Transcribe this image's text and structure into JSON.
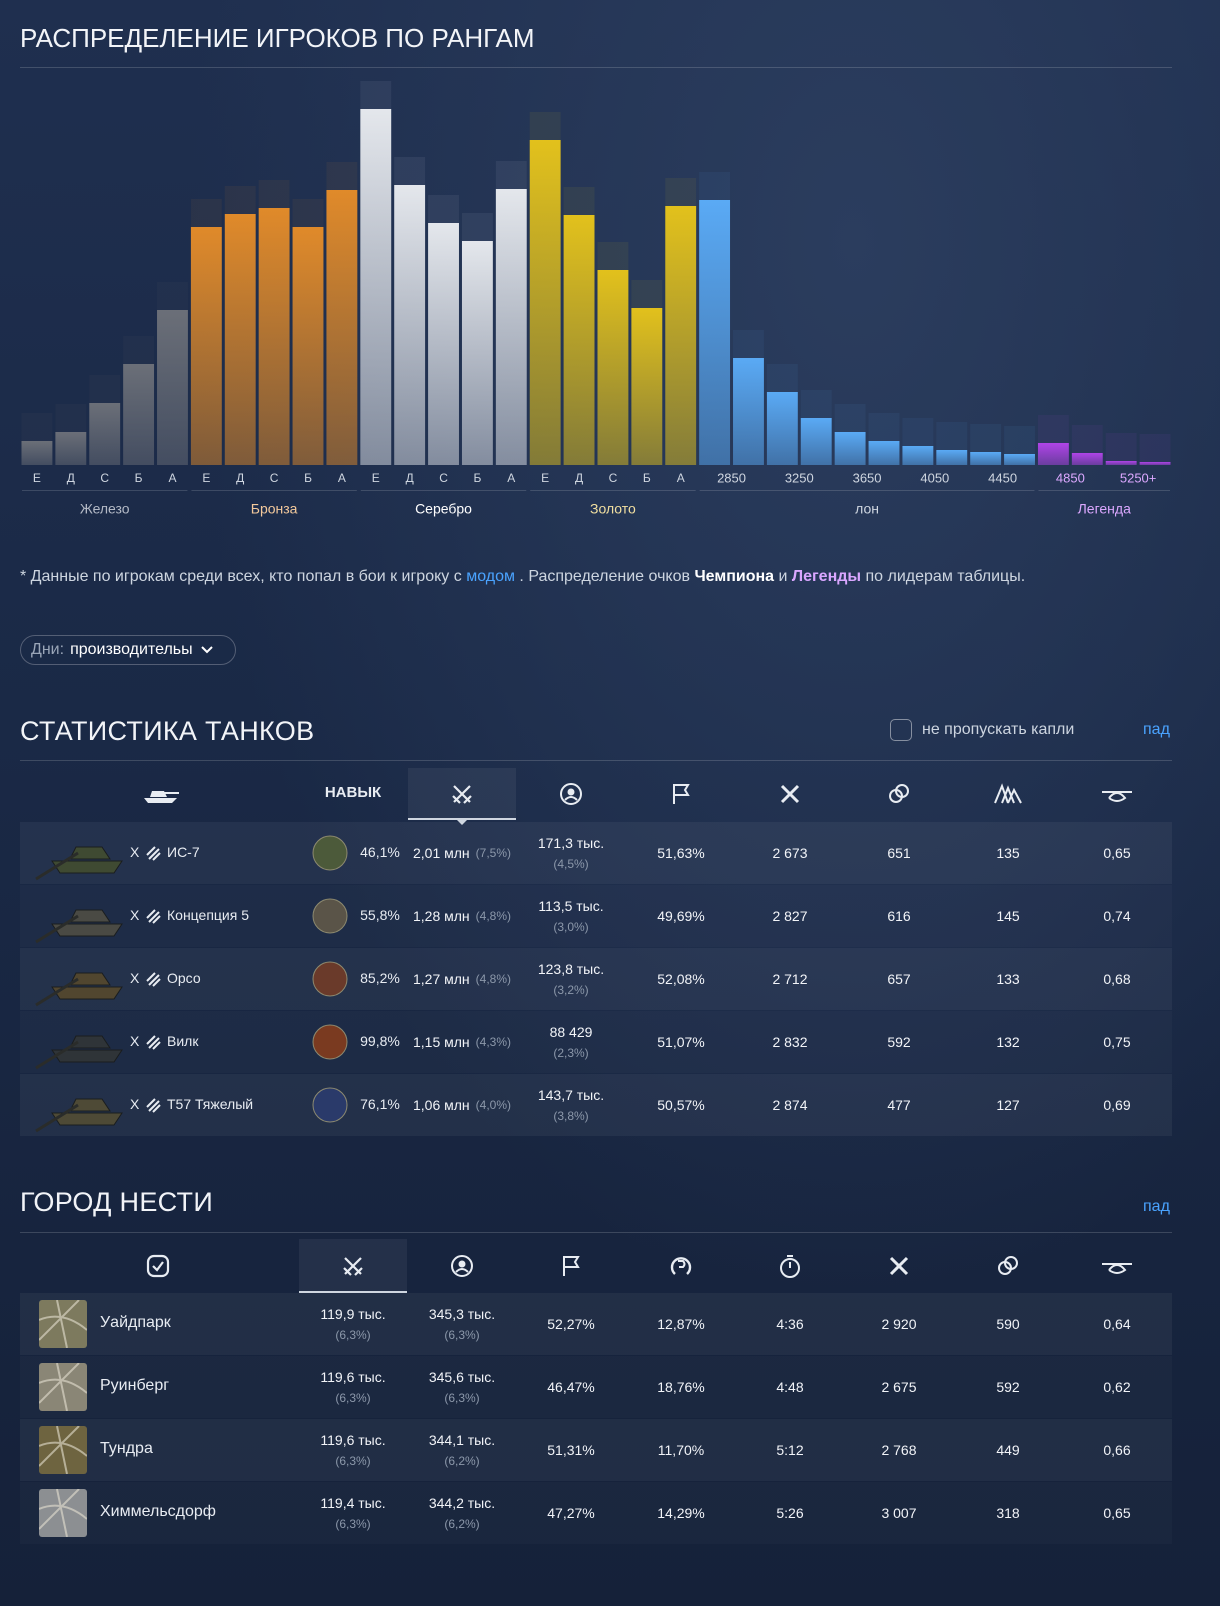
{
  "chart_data": {
    "type": "bar",
    "title": "РАСПРЕДЕЛЕНИЕ ИГРОКОВ ПО РАНГАМ",
    "series": [
      {
        "name": "Железо",
        "color": "#6b6f78",
        "categories": [
          "Е",
          "Д",
          "С",
          "Б",
          "А"
        ],
        "values": [
          24,
          33,
          62,
          101,
          155
        ]
      },
      {
        "name": "Бронза",
        "color": "#e08a2a",
        "categories": [
          "Е",
          "Д",
          "С",
          "Б",
          "А"
        ],
        "values": [
          238,
          251,
          257,
          238,
          275
        ]
      },
      {
        "name": "Серебро",
        "color": "#e4e7ec",
        "categories": [
          "Е",
          "Д",
          "С",
          "Б",
          "А"
        ],
        "values": [
          356,
          280,
          242,
          224,
          276
        ]
      },
      {
        "name": "Золото",
        "color": "#e2c11c",
        "categories": [
          "Е",
          "Д",
          "С",
          "Б",
          "А"
        ],
        "values": [
          325,
          250,
          195,
          157,
          259
        ]
      },
      {
        "name": "лон",
        "color": "#5aaaf5",
        "categories": [
          "2850",
          null,
          "3250",
          null,
          "3650",
          null,
          "4050",
          null,
          "4450",
          null
        ],
        "values": [
          265,
          107,
          73,
          47,
          33,
          24,
          19,
          15,
          13,
          11
        ]
      },
      {
        "name": "Легенда",
        "color": "#b044e8",
        "categories": [
          "4850",
          null,
          "5250+",
          null
        ],
        "values": [
          22,
          12,
          4,
          3
        ]
      }
    ]
  },
  "note": {
    "prefix": "* Данные по игрокам среди всех, кто попал в бои к игроку с",
    "link": "модом",
    "middle": ". Распределение очков",
    "champion": "Чемпиона",
    "and": "и",
    "legend": "Легенды",
    "suffix": "по лидерам таблицы."
  },
  "filter": {
    "label": "Дни:",
    "value": "производительы"
  },
  "tanks": {
    "title": "СТАТИСТИКА ТАНКОВ",
    "checkbox_label": "не пропускать капли",
    "link": "пад",
    "skill_header": "НАВЫК",
    "rows": [
      {
        "tier": "X",
        "name": "ИС-7",
        "skill": "46,1%",
        "battles": "2,01 млн",
        "battles_share": "(7,5%)",
        "players": "171,3 тыс.",
        "players_share": "(4,5%)",
        "winrate": "51,63%",
        "damage": "2 673",
        "exp": "651",
        "spots": "135",
        "ratio": "0,65"
      },
      {
        "tier": "X",
        "name": "Концепция 5",
        "skill": "55,8%",
        "battles": "1,28 млн",
        "battles_share": "(4,8%)",
        "players": "113,5 тыс.",
        "players_share": "(3,0%)",
        "winrate": "49,69%",
        "damage": "2 827",
        "exp": "616",
        "spots": "145",
        "ratio": "0,74"
      },
      {
        "tier": "X",
        "name": "Орсо",
        "skill": "85,2%",
        "battles": "1,27 млн",
        "battles_share": "(4,8%)",
        "players": "123,8 тыс.",
        "players_share": "(3,2%)",
        "winrate": "52,08%",
        "damage": "2 712",
        "exp": "657",
        "spots": "133",
        "ratio": "0,68"
      },
      {
        "tier": "X",
        "name": "Вилк",
        "skill": "99,8%",
        "battles": "1,15 млн",
        "battles_share": "(4,3%)",
        "players": "88 429",
        "players_share": "(2,3%)",
        "winrate": "51,07%",
        "damage": "2 832",
        "exp": "592",
        "spots": "132",
        "ratio": "0,75"
      },
      {
        "tier": "X",
        "name": "Т57 Тяжелый",
        "skill": "76,1%",
        "battles": "1,06 млн",
        "battles_share": "(4,0%)",
        "players": "143,7 тыс.",
        "players_share": "(3,8%)",
        "winrate": "50,57%",
        "damage": "2 874",
        "exp": "477",
        "spots": "127",
        "ratio": "0,69"
      }
    ]
  },
  "maps": {
    "title": "ГОРОД НЕСТИ",
    "link": "пад",
    "rows": [
      {
        "name": "Уайдпарк",
        "battles": "119,9 тыс.",
        "battles_share": "(6,3%)",
        "players": "345,3 тыс.",
        "players_share": "(6,3%)",
        "winrate": "52,27%",
        "survival": "12,87%",
        "time": "4:36",
        "damage": "2 920",
        "exp": "590",
        "ratio": "0,64"
      },
      {
        "name": "Руинберг",
        "battles": "119,6 тыс.",
        "battles_share": "(6,3%)",
        "players": "345,6 тыс.",
        "players_share": "(6,3%)",
        "winrate": "46,47%",
        "survival": "18,76%",
        "time": "4:48",
        "damage": "2 675",
        "exp": "592",
        "ratio": "0,62"
      },
      {
        "name": "Тундра",
        "battles": "119,6 тыс.",
        "battles_share": "(6,3%)",
        "players": "344,1 тыс.",
        "players_share": "(6,2%)",
        "winrate": "51,31%",
        "survival": "11,70%",
        "time": "5:12",
        "damage": "2 768",
        "exp": "449",
        "ratio": "0,66"
      },
      {
        "name": "Химмельсдорф",
        "battles": "119,4 тыс.",
        "battles_share": "(6,3%)",
        "players": "344,2 тыс.",
        "players_share": "(6,2%)",
        "winrate": "47,27%",
        "survival": "14,29%",
        "time": "5:26",
        "damage": "3 007",
        "exp": "318",
        "ratio": "0,65"
      }
    ]
  }
}
